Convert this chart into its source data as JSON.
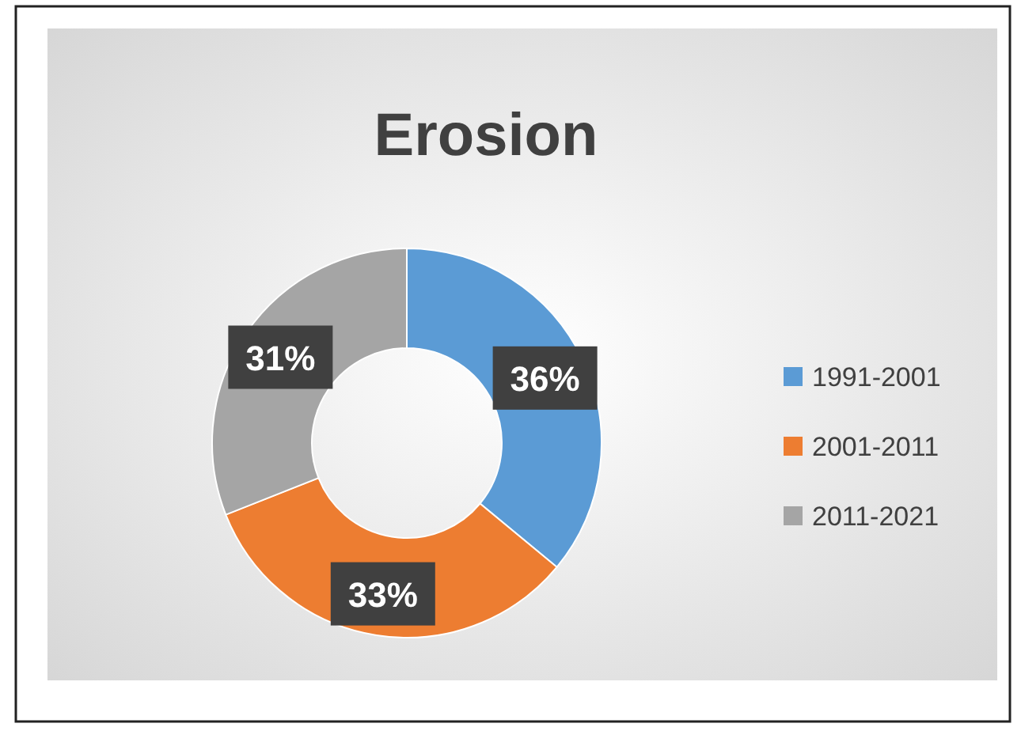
{
  "chart_data": {
    "type": "donut",
    "title": "Erosion",
    "categories": [
      "1991-2001",
      "2001-2011",
      "2011-2021"
    ],
    "values": [
      36,
      33,
      31
    ],
    "colors": [
      "#5b9bd5",
      "#ed7d31",
      "#a5a5a5"
    ],
    "value_labels": [
      "36%",
      "33%",
      "31%"
    ],
    "legend": "right"
  }
}
